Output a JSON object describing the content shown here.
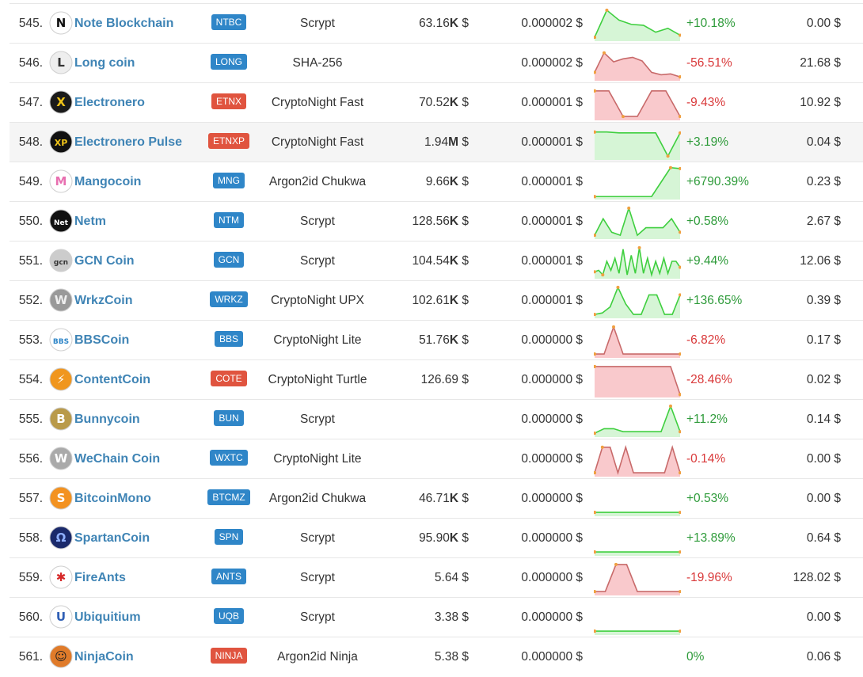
{
  "colors": {
    "link": "#3f84b5",
    "badge_blue": "#2f86c8",
    "badge_red": "#e0543f",
    "up": "#2e9b3a",
    "down": "#d9393a",
    "spark_up_fill": "#d6f5d6",
    "spark_down_fill": "#f9c9cc"
  },
  "rows": [
    {
      "rank": "545.",
      "name": "Note Blockchain",
      "symbol": "NTBC",
      "badge": "blue",
      "algo": "Scrypt",
      "mcap_num": "63.16",
      "mcap_unit": "K",
      "mcap_cur": " $",
      "price": "0.000002 $",
      "trend": "up",
      "spark": [
        0.05,
        0.95,
        0.62,
        0.48,
        0.45,
        0.22,
        0.35,
        0.12
      ],
      "change": "+10.18%",
      "change_dir": "pos",
      "volume": "0.00 $",
      "logo_icon": "note-blockchain-logo-icon",
      "logo_text": "N",
      "logo_bg": "#ffffff",
      "logo_fg": "#111111"
    },
    {
      "rank": "546.",
      "name": "Long coin",
      "symbol": "LONG",
      "badge": "blue",
      "algo": "SHA-256",
      "mcap_num": "",
      "mcap_unit": "",
      "mcap_cur": "",
      "price": "0.000002 $",
      "trend": "down",
      "spark": [
        0.2,
        0.85,
        0.55,
        0.65,
        0.7,
        0.58,
        0.2,
        0.12,
        0.15,
        0.05
      ],
      "change": "-56.51%",
      "change_dir": "neg",
      "volume": "21.68 $",
      "logo_icon": "long-coin-logo-icon",
      "logo_text": "L",
      "logo_bg": "#eeeeee",
      "logo_fg": "#333333"
    },
    {
      "rank": "547.",
      "name": "Electronero",
      "symbol": "ETNX",
      "badge": "red",
      "algo": "CryptoNight Fast",
      "mcap_num": "70.52",
      "mcap_unit": "K",
      "mcap_cur": " $",
      "price": "0.000001 $",
      "trend": "down",
      "spark": [
        0.9,
        0.9,
        0.05,
        0.05,
        0.9,
        0.9,
        0.05
      ],
      "change": "-9.43%",
      "change_dir": "neg",
      "volume": "10.92 $",
      "logo_icon": "electronero-logo-icon",
      "logo_text": "X",
      "logo_bg": "#1a1a1a",
      "logo_fg": "#f0c419"
    },
    {
      "rank": "548.",
      "name": "Electronero Pulse",
      "symbol": "ETNXP",
      "badge": "red",
      "algo": "CryptoNight Fast",
      "mcap_num": "1.94",
      "mcap_unit": "M",
      "mcap_cur": " $",
      "price": "0.000001 $",
      "trend": "up",
      "spark": [
        0.85,
        0.85,
        0.82,
        0.82,
        0.82,
        0.82,
        0.05,
        0.82
      ],
      "change": "+3.19%",
      "change_dir": "pos",
      "volume": "0.04 $",
      "highlight": true,
      "logo_icon": "electronero-pulse-logo-icon",
      "logo_text": "XP",
      "logo_bg": "#111111",
      "logo_fg": "#f0c419"
    },
    {
      "rank": "549.",
      "name": "Mangocoin",
      "symbol": "MNG",
      "badge": "blue",
      "algo": "Argon2id Chukwa",
      "mcap_num": "9.66",
      "mcap_unit": "K",
      "mcap_cur": " $",
      "price": "0.000001 $",
      "trend": "up",
      "spark": [
        0.02,
        0.02,
        0.02,
        0.02,
        0.02,
        0.02,
        0.02,
        0.5,
        0.98,
        0.95
      ],
      "change": "+6790.39%",
      "change_dir": "pos",
      "volume": "0.23 $",
      "logo_icon": "mangocoin-logo-icon",
      "logo_text": "M",
      "logo_bg": "#ffffff",
      "logo_fg": "#e86fb0"
    },
    {
      "rank": "550.",
      "name": "Netm",
      "symbol": "NTM",
      "badge": "blue",
      "algo": "Scrypt",
      "mcap_num": "128.56",
      "mcap_unit": "K",
      "mcap_cur": " $",
      "price": "0.000001 $",
      "trend": "up",
      "spark": [
        0.05,
        0.6,
        0.15,
        0.05,
        0.95,
        0.05,
        0.3,
        0.3,
        0.3,
        0.6,
        0.15
      ],
      "change": "+0.58%",
      "change_dir": "pos",
      "volume": "2.67 $",
      "logo_icon": "netm-logo-icon",
      "logo_text": "Net",
      "logo_bg": "#111111",
      "logo_fg": "#ffffff"
    },
    {
      "rank": "551.",
      "name": "GCN Coin",
      "symbol": "GCN",
      "badge": "blue",
      "algo": "Scrypt",
      "mcap_num": "104.54",
      "mcap_unit": "K",
      "mcap_cur": " $",
      "price": "0.000001 $",
      "trend": "up",
      "spark": [
        0.15,
        0.2,
        0.05,
        0.5,
        0.2,
        0.6,
        0.1,
        0.9,
        0.05,
        0.7,
        0.1,
        0.95,
        0.1,
        0.6,
        0.05,
        0.5,
        0.1,
        0.6,
        0.1,
        0.5,
        0.5,
        0.3
      ],
      "change": "+9.44%",
      "change_dir": "pos",
      "volume": "12.06 $",
      "logo_icon": "gcn-coin-logo-icon",
      "logo_text": "gcn",
      "logo_bg": "#cccccc",
      "logo_fg": "#333333"
    },
    {
      "rank": "552.",
      "name": "WrkzCoin",
      "symbol": "WRKZ",
      "badge": "blue",
      "algo": "CryptoNight UPX",
      "mcap_num": "102.61",
      "mcap_unit": "K",
      "mcap_cur": " $",
      "price": "0.000001 $",
      "trend": "up",
      "spark": [
        0.05,
        0.1,
        0.3,
        0.95,
        0.4,
        0.05,
        0.05,
        0.7,
        0.7,
        0.05,
        0.05,
        0.7
      ],
      "change": "+136.65%",
      "change_dir": "pos",
      "volume": "0.39 $",
      "logo_icon": "wrkzcoin-logo-icon",
      "logo_text": "W",
      "logo_bg": "#999999",
      "logo_fg": "#eeeeee"
    },
    {
      "rank": "553.",
      "name": "BBSCoin",
      "symbol": "BBS",
      "badge": "blue",
      "algo": "CryptoNight Lite",
      "mcap_num": "51.76",
      "mcap_unit": "K",
      "mcap_cur": " $",
      "price": "0.000000 $",
      "trend": "down",
      "spark": [
        0.05,
        0.05,
        0.95,
        0.05,
        0.05,
        0.05,
        0.05,
        0.05,
        0.05,
        0.05
      ],
      "change": "-6.82%",
      "change_dir": "neg",
      "volume": "0.17 $",
      "logo_icon": "bbscoin-logo-icon",
      "logo_text": "BBS",
      "logo_bg": "#ffffff",
      "logo_fg": "#2f86c8"
    },
    {
      "rank": "554.",
      "name": "ContentCoin",
      "symbol": "COTE",
      "badge": "red",
      "algo": "CryptoNight Turtle",
      "mcap_num": "126.69",
      "mcap_unit": "",
      "mcap_cur": " $",
      "price": "0.000000 $",
      "trend": "down",
      "spark": [
        0.95,
        0.95,
        0.95,
        0.95,
        0.95,
        0.95,
        0.95,
        0.95,
        0.95,
        0.02
      ],
      "change": "-28.46%",
      "change_dir": "neg",
      "volume": "0.02 $",
      "logo_icon": "contentcoin-logo-icon",
      "logo_text": "⚡",
      "logo_bg": "#f0961e",
      "logo_fg": "#ffffff"
    },
    {
      "rank": "555.",
      "name": "Bunnycoin",
      "symbol": "BUN",
      "badge": "blue",
      "algo": "Scrypt",
      "mcap_num": "",
      "mcap_unit": "",
      "mcap_cur": "",
      "price": "0.000000 $",
      "trend": "up",
      "spark": [
        0.05,
        0.2,
        0.2,
        0.1,
        0.1,
        0.1,
        0.1,
        0.1,
        0.95,
        0.1
      ],
      "change": "+11.2%",
      "change_dir": "pos",
      "volume": "0.14 $",
      "logo_icon": "bunnycoin-logo-icon",
      "logo_text": "B",
      "logo_bg": "#b99a4a",
      "logo_fg": "#ffffff"
    },
    {
      "rank": "556.",
      "name": "WeChain Coin",
      "symbol": "WXTC",
      "badge": "blue",
      "algo": "CryptoNight Lite",
      "mcap_num": "",
      "mcap_unit": "",
      "mcap_cur": "",
      "price": "0.000000 $",
      "trend": "down",
      "spark": [
        0.05,
        0.9,
        0.9,
        0.05,
        0.9,
        0.05,
        0.05,
        0.05,
        0.05,
        0.05,
        0.9,
        0.05
      ],
      "change": "-0.14%",
      "change_dir": "neg",
      "volume": "0.00 $",
      "logo_icon": "wechain-coin-logo-icon",
      "logo_text": "W",
      "logo_bg": "#aaaaaa",
      "logo_fg": "#ffffff"
    },
    {
      "rank": "557.",
      "name": "BitcoinMono",
      "symbol": "BTCMZ",
      "badge": "blue",
      "algo": "Argon2id Chukwa",
      "mcap_num": "46.71",
      "mcap_unit": "K",
      "mcap_cur": " $",
      "price": "0.000000 $",
      "trend": "up",
      "spark": [
        0.05,
        0.05,
        0.05,
        0.05,
        0.05,
        0.05
      ],
      "change": "+0.53%",
      "change_dir": "pos",
      "volume": "0.00 $",
      "logo_icon": "bitcoinmono-logo-icon",
      "logo_text": "S",
      "logo_bg": "#f39220",
      "logo_fg": "#ffffff"
    },
    {
      "rank": "558.",
      "name": "SpartanCoin",
      "symbol": "SPN",
      "badge": "blue",
      "algo": "Scrypt",
      "mcap_num": "95.90",
      "mcap_unit": "K",
      "mcap_cur": " $",
      "price": "0.000000 $",
      "trend": "up",
      "spark": [
        0.05,
        0.05,
        0.05,
        0.05,
        0.05,
        0.05
      ],
      "change": "+13.89%",
      "change_dir": "pos",
      "volume": "0.64 $",
      "logo_icon": "spartancoin-logo-icon",
      "logo_text": "Ω",
      "logo_bg": "#1b2a6b",
      "logo_fg": "#8fb0ff"
    },
    {
      "rank": "559.",
      "name": "FireAnts",
      "symbol": "ANTS",
      "badge": "blue",
      "algo": "Scrypt",
      "mcap_num": "5.64",
      "mcap_unit": "",
      "mcap_cur": " $",
      "price": "0.000000 $",
      "trend": "down",
      "spark": [
        0.05,
        0.05,
        0.95,
        0.95,
        0.05,
        0.05,
        0.05,
        0.05,
        0.05
      ],
      "change": "-19.96%",
      "change_dir": "neg",
      "volume": "128.02 $",
      "logo_icon": "fireants-logo-icon",
      "logo_text": "✱",
      "logo_bg": "#ffffff",
      "logo_fg": "#d62828"
    },
    {
      "rank": "560.",
      "name": "Ubiquitium",
      "symbol": "UQB",
      "badge": "blue",
      "algo": "Scrypt",
      "mcap_num": "3.38",
      "mcap_unit": "",
      "mcap_cur": " $",
      "price": "0.000000 $",
      "trend": "up",
      "spark": [
        0.05,
        0.05,
        0.05,
        0.05,
        0.05,
        0.05
      ],
      "change": "",
      "change_dir": "pos",
      "volume": "0.00 $",
      "logo_icon": "ubiquitium-logo-icon",
      "logo_text": "U",
      "logo_bg": "#ffffff",
      "logo_fg": "#2f5fb5"
    },
    {
      "rank": "561.",
      "name": "NinjaCoin",
      "symbol": "NINJA",
      "badge": "red",
      "algo": "Argon2id Ninja",
      "mcap_num": "5.38",
      "mcap_unit": "",
      "mcap_cur": " $",
      "price": "0.000000 $",
      "trend": "flat",
      "spark": [],
      "change": "0%",
      "change_dir": "zero",
      "volume": "0.06 $",
      "logo_icon": "ninjacoin-logo-icon",
      "logo_text": "☺",
      "logo_bg": "#e07b2a",
      "logo_fg": "#222222"
    }
  ]
}
